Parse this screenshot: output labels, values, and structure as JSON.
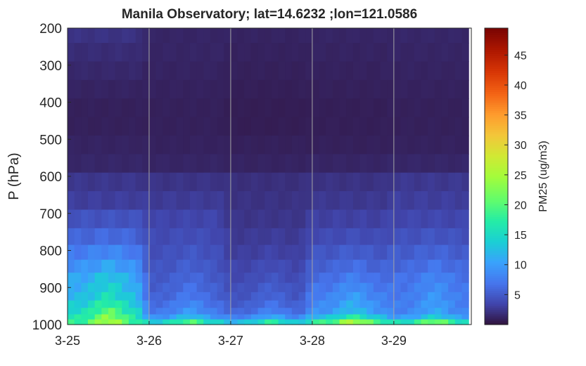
{
  "chart_data": {
    "type": "heatmap",
    "title": "Manila Observatory; lat=14.6232 ;lon=121.0586",
    "ylabel": "P (hPa)",
    "xlabel": "",
    "x_ticks": [
      "3-25",
      "3-26",
      "3-27",
      "3-28",
      "3-29"
    ],
    "x_range_days": [
      0,
      4.95
    ],
    "y_ticks": [
      "200",
      "300",
      "400",
      "500",
      "600",
      "700",
      "800",
      "900",
      "1000"
    ],
    "ylim": [
      1000,
      200
    ],
    "colorbar": {
      "label": "PM25 (ug/m3)",
      "ticks": [
        "5",
        "10",
        "15",
        "20",
        "25",
        "30",
        "35",
        "40",
        "45"
      ],
      "range": [
        0,
        49.5
      ],
      "colormap": "turbo"
    },
    "day_separators": [
      "3-26",
      "3-27",
      "3-28",
      "3-29"
    ],
    "pressure_levels": [
      215,
      265,
      315,
      365,
      415,
      465,
      515,
      565,
      615,
      665,
      715,
      765,
      805,
      845,
      875,
      900,
      925,
      945,
      965,
      980,
      992
    ],
    "daily_profile": {
      "3-25": [
        2.2,
        1.8,
        1.5,
        1.2,
        1.0,
        1.0,
        1.2,
        1.4,
        2.5,
        3.0,
        4.5,
        6.0,
        8.0,
        10.0,
        12.0,
        13.0,
        14.0,
        16.0,
        18.0,
        20.0,
        22.0
      ],
      "3-26": [
        1.3,
        1.3,
        1.2,
        1.1,
        1.0,
        1.0,
        1.1,
        1.3,
        2.3,
        2.8,
        3.5,
        4.0,
        4.5,
        5.0,
        5.5,
        6.0,
        6.5,
        7.5,
        8.5,
        11.0,
        17.0
      ],
      "3-27": [
        1.2,
        1.1,
        1.0,
        0.9,
        0.8,
        0.8,
        1.0,
        1.2,
        2.0,
        2.2,
        2.4,
        2.8,
        3.2,
        3.8,
        4.2,
        4.8,
        5.2,
        6.0,
        7.0,
        9.5,
        15.0
      ],
      "3-28": [
        1.3,
        1.2,
        1.1,
        1.0,
        0.9,
        0.9,
        1.0,
        1.3,
        2.2,
        2.6,
        3.2,
        4.0,
        5.0,
        6.0,
        7.0,
        8.0,
        9.0,
        10.0,
        11.0,
        15.0,
        22.0
      ],
      "3-29": [
        1.4,
        1.3,
        1.2,
        1.1,
        1.0,
        1.0,
        1.1,
        1.4,
        2.6,
        3.0,
        3.6,
        4.5,
        5.5,
        6.5,
        7.5,
        8.0,
        8.5,
        9.0,
        9.5,
        12.0,
        19.0
      ]
    }
  }
}
